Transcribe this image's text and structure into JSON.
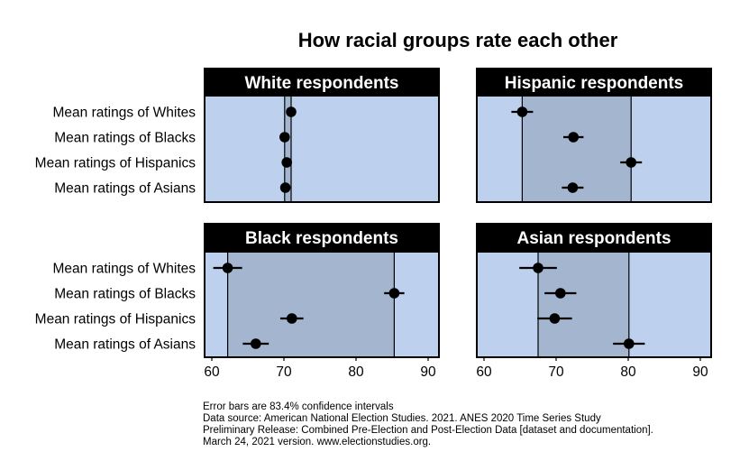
{
  "chart_data": {
    "type": "scatter",
    "title": "How racial groups rate each other",
    "row_labels": [
      "Mean ratings of Whites",
      "Mean ratings of Blacks",
      "Mean ratings of Hispanics",
      "Mean ratings of Asians"
    ],
    "xlim": [
      59,
      91.5
    ],
    "x_ticks": [
      60,
      70,
      80,
      90
    ],
    "colors": {
      "panel_bg": "#bdd1ee",
      "range_band": "#a3b5cf",
      "strip_bg": "#000000",
      "point": "#000000"
    },
    "panels": [
      {
        "name": "White respondents",
        "points": [
          {
            "mean": 71.0,
            "lo": 70.5,
            "hi": 71.5
          },
          {
            "mean": 70.1,
            "lo": 69.6,
            "hi": 70.6
          },
          {
            "mean": 70.4,
            "lo": 69.9,
            "hi": 70.9
          },
          {
            "mean": 70.2,
            "lo": 69.7,
            "hi": 70.7
          }
        ]
      },
      {
        "name": "Hispanic respondents",
        "points": [
          {
            "mean": 65.3,
            "lo": 63.8,
            "hi": 66.8
          },
          {
            "mean": 72.4,
            "lo": 71.0,
            "hi": 73.8
          },
          {
            "mean": 80.4,
            "lo": 78.9,
            "hi": 81.9
          },
          {
            "mean": 72.3,
            "lo": 70.8,
            "hi": 73.8
          }
        ]
      },
      {
        "name": "Black respondents",
        "points": [
          {
            "mean": 62.2,
            "lo": 60.2,
            "hi": 64.2
          },
          {
            "mean": 85.3,
            "lo": 83.9,
            "hi": 86.7
          },
          {
            "mean": 71.1,
            "lo": 69.5,
            "hi": 72.7
          },
          {
            "mean": 66.1,
            "lo": 64.3,
            "hi": 67.9
          }
        ]
      },
      {
        "name": "Asian respondents",
        "points": [
          {
            "mean": 67.5,
            "lo": 64.9,
            "hi": 70.1
          },
          {
            "mean": 70.6,
            "lo": 68.4,
            "hi": 72.8
          },
          {
            "mean": 69.8,
            "lo": 67.4,
            "hi": 72.2
          },
          {
            "mean": 80.1,
            "lo": 77.9,
            "hi": 82.3
          }
        ]
      }
    ]
  },
  "caption": {
    "line1": "Error bars are 83.4% confidence intervals",
    "line2": "Data source: American National Election Studies. 2021. ANES 2020 Time Series Study",
    "line3": "Preliminary Release: Combined Pre-Election and Post-Election Data [dataset and documentation].",
    "line4": "March 24, 2021 version. www.electionstudies.org."
  }
}
